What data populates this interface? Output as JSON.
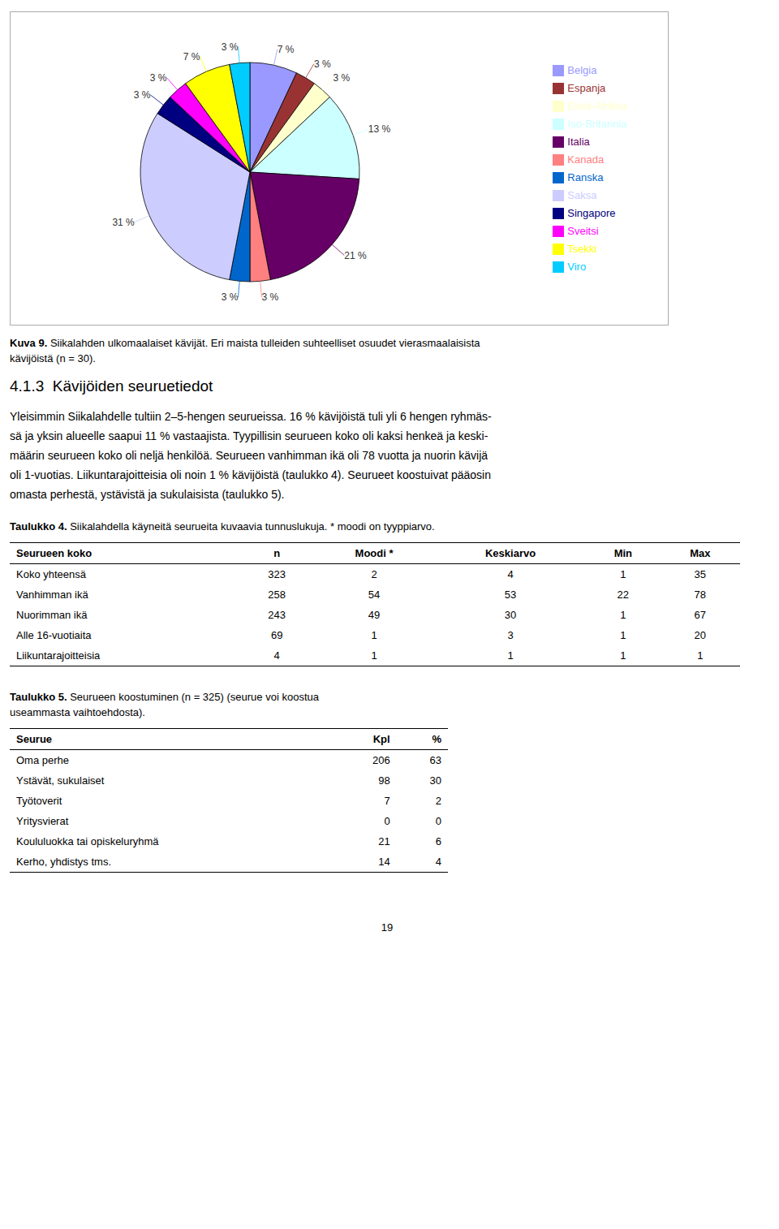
{
  "chart_data": {
    "type": "pie",
    "categories": [
      "Belgia",
      "Espanja",
      "Etelä-Afrikka",
      "Iso-Britannia",
      "Italia",
      "Kanada",
      "Ranska",
      "Saksa",
      "Singapore",
      "Sveitsi",
      "Tsekki",
      "Viro"
    ],
    "values": [
      7,
      3,
      3,
      13,
      21,
      3,
      3,
      31,
      3,
      3,
      7,
      3
    ],
    "value_labels": [
      "7 %",
      "3 %",
      "3 %",
      "13 %",
      "21 %",
      "3 %",
      "3 %",
      "31 %",
      "3 %",
      "3 %",
      "7 %",
      "3 %"
    ],
    "colors": [
      "#9999FF",
      "#993333",
      "#FFFFCC",
      "#CCFFFF",
      "#660066",
      "#FF8080",
      "#0066CC",
      "#CCCCFF",
      "#000080",
      "#FF00FF",
      "#FFFF00",
      "#00CCFF"
    ],
    "data_labels": true,
    "legend": "right"
  },
  "figure_caption": {
    "label": "Kuva 9.",
    "lines": [
      "Siikalahden ulkomaalaiset kävijät. Eri maista tulleiden suhteelliset osuudet vierasmaalaisista",
      "kävijöistä (n = 30)."
    ]
  },
  "section_title": "4.1.3  Kävijöiden seuruetiedot",
  "body": [
    "Yleisimmin Siikalahdelle tultiin 2–5-hengen seurueissa. 16 % kävijöistä tuli yli 6 hengen ryhmäs-",
    "sä ja yksin alueelle saapui 11 % vastaajista. Tyypillisin seurueen koko oli kaksi henkeä ja keski-",
    "määrin seurueen koko oli neljä henkilöä. Seurueen vanhimman ikä oli 78 vuotta ja nuorin kävijä",
    "oli 1-vuotias. Liikuntarajoitteisia oli noin 1 % kävijöistä (taulukko 4). Seurueet koostuivat pääosin",
    "omasta perhestä, ystävistä ja sukulaisista (taulukko 5)."
  ],
  "table4": {
    "caption_label": "Taulukko 4.",
    "caption_lines": [
      "Siikalahdella käyneitä seurueita kuvaavia tunnuslukuja. * moodi on tyyppiarvo."
    ],
    "headers": [
      "Seurueen koko",
      "n",
      "Moodi *",
      "Keskiarvo",
      "Min",
      "Max"
    ],
    "rows": [
      [
        "Koko yhteensä",
        "323",
        "2",
        "4",
        "1",
        "35"
      ],
      [
        "Vanhimman ikä",
        "258",
        "54",
        "53",
        "22",
        "78"
      ],
      [
        "Nuorimman ikä",
        "243",
        "49",
        "30",
        "1",
        "67"
      ],
      [
        "Alle 16-vuotiaita",
        "69",
        "1",
        "3",
        "1",
        "20"
      ],
      [
        "Liikuntarajoitteisia",
        "4",
        "1",
        "1",
        "1",
        "1"
      ]
    ]
  },
  "table5": {
    "caption_label": "Taulukko 5.",
    "caption_lines": [
      "Seurueen koostuminen (n = 325) (seurue voi koostua",
      "useammasta vaihtoehdosta)."
    ],
    "headers": [
      "Seurue",
      "Kpl",
      "%"
    ],
    "rows": [
      [
        "Oma perhe",
        "206",
        "63"
      ],
      [
        "Ystävät, sukulaiset",
        "98",
        "30"
      ],
      [
        "Työtoverit",
        "7",
        "2"
      ],
      [
        "Yritysvierat",
        "0",
        "0"
      ],
      [
        "Koululuokka tai opiskeluryhmä",
        "21",
        "6"
      ],
      [
        "Kerho, yhdistys tms.",
        "14",
        "4"
      ]
    ]
  },
  "page_number": "19"
}
